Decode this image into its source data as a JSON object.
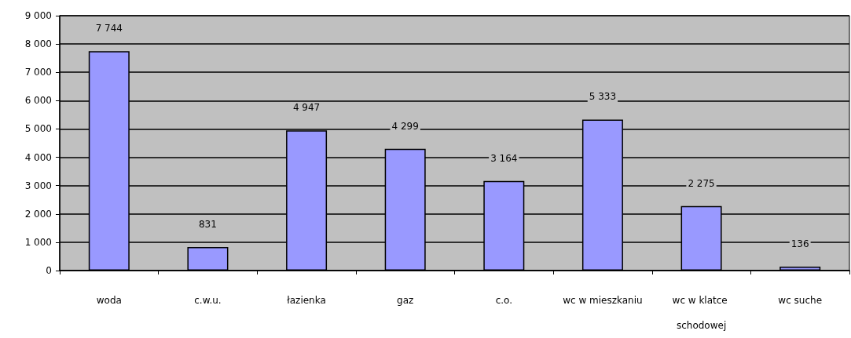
{
  "chart_data": {
    "type": "bar",
    "categories": [
      "woda",
      "c.w.u.",
      "łazienka",
      "gaz",
      "c.o.",
      "wc w mieszkaniu",
      "wc w klatce schodowej",
      "wc suche"
    ],
    "values": [
      7744,
      831,
      4947,
      4299,
      3164,
      5333,
      2275,
      136
    ],
    "value_labels": [
      "7 744",
      "831",
      "4 947",
      "4 299",
      "3 164",
      "5 333",
      "2 275",
      "136"
    ],
    "color": "#9999ff",
    "ylim": [
      0,
      9000
    ],
    "yticks": [
      {
        "value": 0,
        "label": "0"
      },
      {
        "value": 1000,
        "label": "1 000"
      },
      {
        "value": 2000,
        "label": "2 000"
      },
      {
        "value": 3000,
        "label": "3 000"
      },
      {
        "value": 4000,
        "label": "4 000"
      },
      {
        "value": 5000,
        "label": "5 000"
      },
      {
        "value": 6000,
        "label": "6 000"
      },
      {
        "value": 7000,
        "label": "7 000"
      },
      {
        "value": 8000,
        "label": "8 000"
      },
      {
        "value": 9000,
        "label": "9 000"
      }
    ],
    "grid": "y"
  }
}
